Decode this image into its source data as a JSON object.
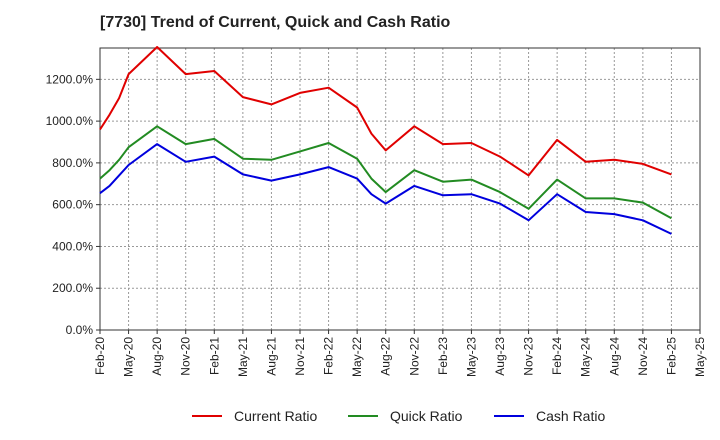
{
  "chart_data": {
    "type": "line",
    "title": "[7730]  Trend of Current, Quick and Cash Ratio",
    "xlabel": "",
    "ylabel": "",
    "ylim": [
      0,
      1350
    ],
    "yticks": [
      0,
      200,
      400,
      600,
      800,
      1000,
      1200
    ],
    "ytick_labels": [
      "0.0%",
      "200.0%",
      "400.0%",
      "600.0%",
      "800.0%",
      "1000.0%",
      "1200.0%"
    ],
    "grid": true,
    "legend_position": "bottom",
    "categories": [
      "Feb-20",
      "May-20",
      "Aug-20",
      "Nov-20",
      "Feb-21",
      "May-21",
      "Aug-21",
      "Nov-21",
      "Feb-22",
      "May-22",
      "Aug-22",
      "Nov-22",
      "Feb-23",
      "May-23",
      "Aug-23",
      "Nov-23",
      "Feb-24",
      "May-24",
      "Aug-24",
      "Nov-24",
      "Feb-25",
      "May-25"
    ],
    "x": [
      0,
      1,
      2,
      3,
      4,
      5,
      6,
      7,
      8,
      9,
      10,
      11,
      12,
      13,
      14,
      15,
      16,
      17,
      18,
      19,
      20,
      21
    ],
    "series": [
      {
        "name": "Current Ratio",
        "color": "#e00000",
        "x": [
          0,
          0.333,
          0.667,
          1,
          2,
          3,
          4,
          5,
          6,
          7,
          8,
          9,
          9.5,
          10,
          11,
          12,
          13,
          14,
          15,
          16,
          17,
          18,
          19,
          20
        ],
        "values": [
          960,
          1030,
          1110,
          1225,
          1355,
          1225,
          1240,
          1115,
          1080,
          1135,
          1160,
          1065,
          940,
          860,
          975,
          890,
          895,
          830,
          740,
          910,
          805,
          815,
          795,
          745
        ]
      },
      {
        "name": "Quick Ratio",
        "color": "#228b22",
        "x": [
          0,
          0.333,
          0.667,
          1,
          2,
          3,
          4,
          5,
          6,
          7,
          8,
          9,
          9.5,
          10,
          11,
          12,
          13,
          14,
          15,
          16,
          17,
          18,
          19,
          20
        ],
        "values": [
          725,
          765,
          815,
          875,
          975,
          890,
          915,
          820,
          815,
          855,
          895,
          820,
          725,
          660,
          765,
          710,
          720,
          660,
          580,
          720,
          630,
          630,
          610,
          535
        ]
      },
      {
        "name": "Cash Ratio",
        "color": "#0000dd",
        "x": [
          0,
          0.333,
          0.667,
          1,
          2,
          3,
          4,
          5,
          6,
          7,
          8,
          9,
          9.5,
          10,
          11,
          12,
          13,
          14,
          15,
          16,
          17,
          18,
          19,
          20
        ],
        "values": [
          655,
          690,
          740,
          790,
          890,
          805,
          830,
          745,
          715,
          745,
          780,
          725,
          650,
          605,
          690,
          645,
          650,
          605,
          525,
          650,
          565,
          555,
          525,
          460
        ]
      }
    ]
  }
}
